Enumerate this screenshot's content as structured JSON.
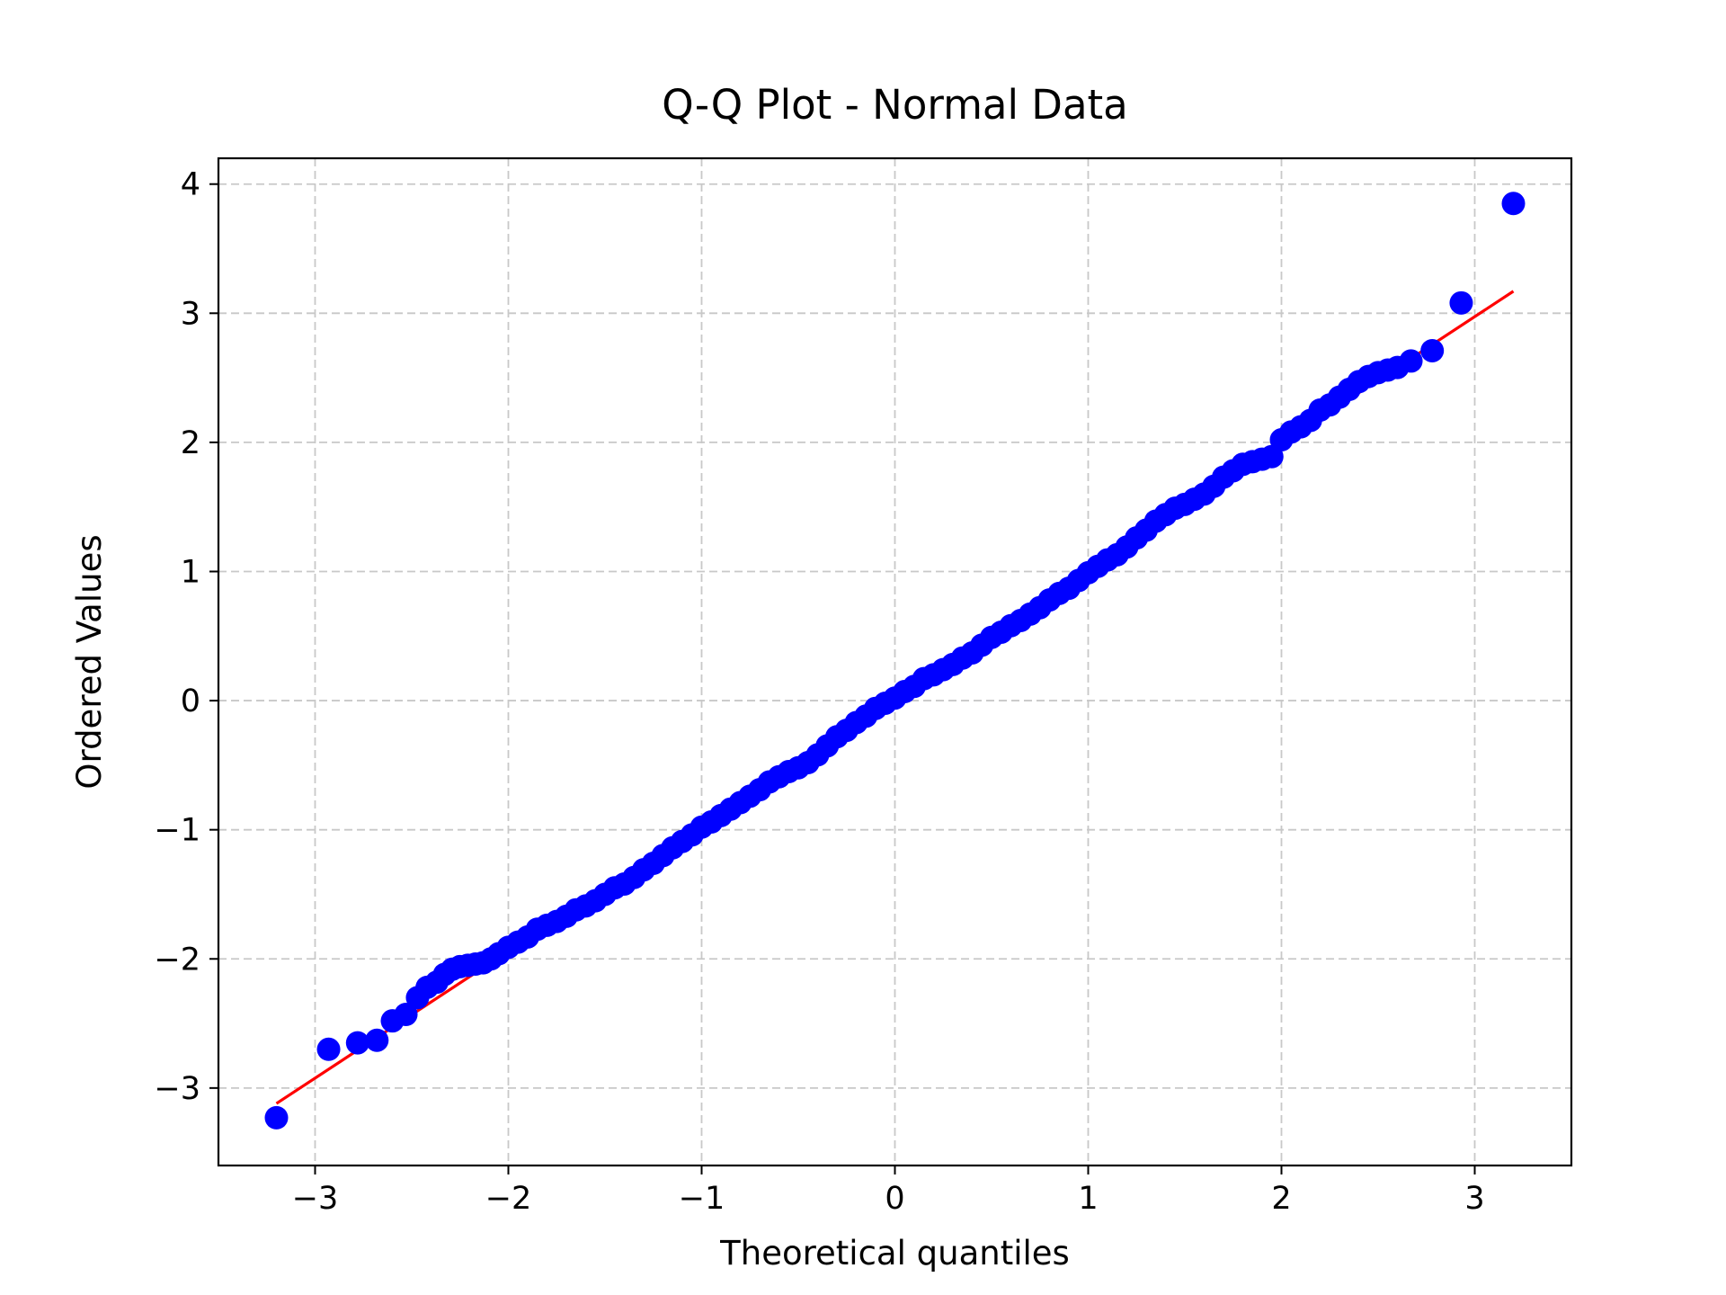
{
  "chart_data": {
    "type": "scatter",
    "title": "Q-Q Plot - Normal Data",
    "xlabel": "Theoretical quantiles",
    "ylabel": "Ordered Values",
    "xlim": [
      -3.5,
      3.5
    ],
    "ylim": [
      -3.6,
      4.2
    ],
    "x_ticks": [
      -3,
      -2,
      -1,
      0,
      1,
      2,
      3
    ],
    "x_tick_labels": [
      "−3",
      "−2",
      "−1",
      "0",
      "1",
      "2",
      "3"
    ],
    "y_ticks": [
      -3,
      -2,
      -1,
      0,
      1,
      2,
      3,
      4
    ],
    "y_tick_labels": [
      "−3",
      "−2",
      "−1",
      "0",
      "1",
      "2",
      "3",
      "4"
    ],
    "grid": true,
    "series": [
      {
        "kind": "points",
        "color": "#0000ff",
        "x": [
          -3.2,
          -2.93,
          -2.78,
          -2.68,
          -2.6,
          -2.53,
          -2.47,
          -2.42,
          -2.37,
          -2.33,
          -2.29,
          -2.25,
          -2.21,
          -2.17,
          -2.13,
          -2.09,
          -2.05,
          -2.0,
          -1.95,
          -1.9,
          -1.85,
          -1.8,
          -1.75,
          -1.7,
          -1.65,
          -1.6,
          -1.55,
          -1.5,
          -1.45,
          -1.4,
          -1.35,
          -1.3,
          -1.25,
          -1.2,
          -1.15,
          -1.1,
          -1.05,
          -1.0,
          -0.95,
          -0.9,
          -0.85,
          -0.8,
          -0.75,
          -0.7,
          -0.65,
          -0.6,
          -0.55,
          -0.5,
          -0.45,
          -0.4,
          -0.35,
          -0.3,
          -0.25,
          -0.2,
          -0.15,
          -0.1,
          -0.05,
          0.0,
          0.05,
          0.1,
          0.15,
          0.2,
          0.25,
          0.3,
          0.35,
          0.4,
          0.45,
          0.5,
          0.55,
          0.6,
          0.65,
          0.7,
          0.75,
          0.8,
          0.85,
          0.9,
          0.95,
          1.0,
          1.05,
          1.1,
          1.15,
          1.2,
          1.25,
          1.3,
          1.35,
          1.4,
          1.45,
          1.5,
          1.55,
          1.6,
          1.65,
          1.7,
          1.75,
          1.8,
          1.85,
          1.9,
          1.95,
          2.0,
          2.05,
          2.1,
          2.15,
          2.2,
          2.25,
          2.3,
          2.35,
          2.4,
          2.45,
          2.5,
          2.55,
          2.6,
          2.67,
          2.78,
          2.93,
          3.2
        ],
        "y": [
          -3.23,
          -2.7,
          -2.65,
          -2.63,
          -2.48,
          -2.43,
          -2.3,
          -2.22,
          -2.18,
          -2.12,
          -2.08,
          -2.06,
          -2.05,
          -2.04,
          -2.03,
          -2.0,
          -1.96,
          -1.91,
          -1.87,
          -1.83,
          -1.77,
          -1.74,
          -1.71,
          -1.67,
          -1.62,
          -1.59,
          -1.55,
          -1.5,
          -1.45,
          -1.42,
          -1.37,
          -1.31,
          -1.26,
          -1.2,
          -1.14,
          -1.09,
          -1.04,
          -0.98,
          -0.94,
          -0.89,
          -0.84,
          -0.79,
          -0.74,
          -0.69,
          -0.63,
          -0.59,
          -0.55,
          -0.52,
          -0.48,
          -0.42,
          -0.35,
          -0.28,
          -0.23,
          -0.17,
          -0.12,
          -0.06,
          -0.02,
          0.02,
          0.07,
          0.11,
          0.17,
          0.2,
          0.24,
          0.28,
          0.33,
          0.37,
          0.43,
          0.49,
          0.53,
          0.58,
          0.62,
          0.67,
          0.72,
          0.78,
          0.83,
          0.87,
          0.93,
          0.99,
          1.04,
          1.09,
          1.13,
          1.19,
          1.26,
          1.32,
          1.39,
          1.44,
          1.49,
          1.52,
          1.56,
          1.6,
          1.66,
          1.73,
          1.78,
          1.83,
          1.85,
          1.87,
          1.89,
          2.02,
          2.08,
          2.12,
          2.17,
          2.25,
          2.29,
          2.35,
          2.41,
          2.47,
          2.51,
          2.54,
          2.56,
          2.58,
          2.63,
          2.71,
          3.08,
          3.85
        ]
      },
      {
        "kind": "fit-line",
        "color": "#ff0000",
        "x": [
          -3.2,
          3.2
        ],
        "y": [
          -3.12,
          3.17
        ]
      }
    ]
  }
}
